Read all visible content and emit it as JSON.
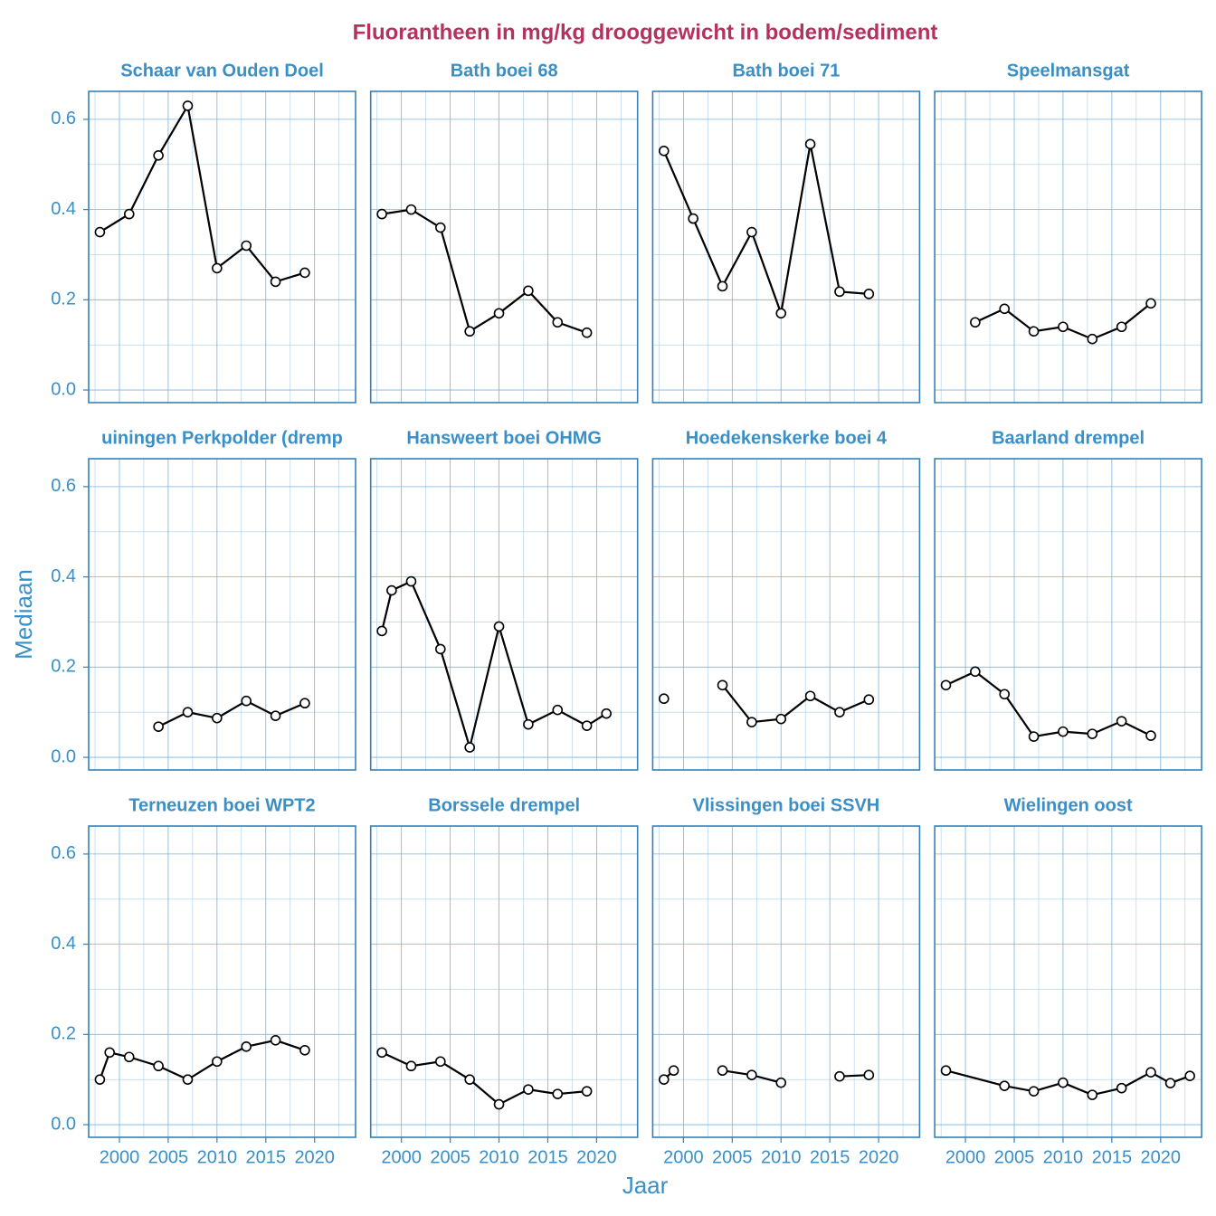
{
  "title": "Fluorantheen in mg/kg drooggewicht in bodem/sediment",
  "xlabel": "Jaar",
  "ylabel": "Mediaan",
  "chart_data": [
    {
      "type": "line",
      "title": "Schaar van Ouden Doel",
      "color": "#000000",
      "grid": true,
      "xlim": [
        1996.85,
        2024.2
      ],
      "ylim": [
        -0.028,
        0.662
      ],
      "xticks": [
        2000,
        2005,
        2010,
        2015,
        2020
      ],
      "yticks": [
        {
          "value": 0,
          "label": "0.0"
        },
        0.2,
        0.4,
        0.6
      ],
      "x": [
        1998,
        2001,
        2004,
        2007,
        2010,
        2013,
        2016,
        2019
      ],
      "values": [
        0.35,
        0.39,
        0.52,
        0.63,
        0.27,
        0.32,
        0.24,
        0.26
      ]
    },
    {
      "type": "line",
      "title": "Bath boei 68",
      "color": "#000000",
      "grid": true,
      "xlim": [
        1996.85,
        2024.2
      ],
      "ylim": [
        -0.028,
        0.662
      ],
      "xticks": [
        2000,
        2005,
        2010,
        2015,
        2020
      ],
      "yticks": [
        {
          "value": 0,
          "label": "0.0"
        },
        0.2,
        0.4,
        0.6
      ],
      "x": [
        1998,
        2001,
        2004,
        2007,
        2010,
        2013,
        2016,
        2019
      ],
      "values": [
        0.39,
        0.4,
        0.36,
        0.13,
        0.17,
        0.22,
        0.15,
        0.127
      ]
    },
    {
      "type": "line",
      "title": "Bath boei 71",
      "color": "#000000",
      "grid": true,
      "xlim": [
        1996.85,
        2024.2
      ],
      "ylim": [
        -0.028,
        0.662
      ],
      "xticks": [
        2000,
        2005,
        2010,
        2015,
        2020
      ],
      "yticks": [
        {
          "value": 0,
          "label": "0.0"
        },
        0.2,
        0.4,
        0.6
      ],
      "x": [
        1998,
        2001,
        2004,
        2007,
        2010,
        2013,
        2016,
        2019
      ],
      "values": [
        0.53,
        0.38,
        0.23,
        0.35,
        0.17,
        0.545,
        0.218,
        0.213
      ]
    },
    {
      "type": "line",
      "title": "Speelmansgat",
      "color": "#000000",
      "grid": true,
      "xlim": [
        1996.85,
        2024.2
      ],
      "ylim": [
        -0.028,
        0.662
      ],
      "xticks": [
        2000,
        2005,
        2010,
        2015,
        2020
      ],
      "yticks": [
        {
          "value": 0,
          "label": "0.0"
        },
        0.2,
        0.4,
        0.6
      ],
      "x": [
        2001,
        2004,
        2007,
        2010,
        2013,
        2016,
        2019
      ],
      "values": [
        0.15,
        0.18,
        0.13,
        0.14,
        0.113,
        0.14,
        0.192
      ]
    },
    {
      "type": "line",
      "title": "uiningen Perkpolder (dremp",
      "color": "#000000",
      "grid": true,
      "xlim": [
        1996.85,
        2024.2
      ],
      "ylim": [
        -0.028,
        0.662
      ],
      "xticks": [
        2000,
        2005,
        2010,
        2015,
        2020
      ],
      "yticks": [
        {
          "value": 0,
          "label": "0.0"
        },
        0.2,
        0.4,
        0.6
      ],
      "x": [
        2004,
        2007,
        2010,
        2013,
        2016,
        2019
      ],
      "values": [
        0.068,
        0.1,
        0.087,
        0.125,
        0.092,
        0.12
      ]
    },
    {
      "type": "line",
      "title": "Hansweert boei OHMG",
      "color": "#000000",
      "grid": true,
      "xlim": [
        1996.85,
        2024.2
      ],
      "ylim": [
        -0.028,
        0.662
      ],
      "xticks": [
        2000,
        2005,
        2010,
        2015,
        2020
      ],
      "yticks": [
        {
          "value": 0,
          "label": "0.0"
        },
        0.2,
        0.4,
        0.6
      ],
      "x": [
        1998,
        1999,
        2001,
        2004,
        2007,
        2010,
        2013,
        2016,
        2019,
        2021
      ],
      "values": [
        0.28,
        0.37,
        0.39,
        0.24,
        0.022,
        0.29,
        0.073,
        0.105,
        0.07,
        0.097
      ]
    },
    {
      "type": "line",
      "title": "Hoedekenskerke boei 4",
      "color": "#000000",
      "grid": true,
      "xlim": [
        1996.85,
        2024.2
      ],
      "ylim": [
        -0.028,
        0.662
      ],
      "xticks": [
        2000,
        2005,
        2010,
        2015,
        2020
      ],
      "yticks": [
        {
          "value": 0,
          "label": "0.0"
        },
        0.2,
        0.4,
        0.6
      ],
      "x": [
        1998,
        2001,
        2004,
        2007,
        2010,
        2013,
        2016,
        2019
      ],
      "values": [
        0.13,
        null,
        0.16,
        0.078,
        0.085,
        0.136,
        0.1,
        0.128
      ]
    },
    {
      "type": "line",
      "title": "Baarland drempel",
      "color": "#000000",
      "grid": true,
      "xlim": [
        1996.85,
        2024.2
      ],
      "ylim": [
        -0.028,
        0.662
      ],
      "xticks": [
        2000,
        2005,
        2010,
        2015,
        2020
      ],
      "yticks": [
        {
          "value": 0,
          "label": "0.0"
        },
        0.2,
        0.4,
        0.6
      ],
      "x": [
        1998,
        2001,
        2004,
        2007,
        2010,
        2013,
        2016,
        2019
      ],
      "values": [
        0.16,
        0.19,
        0.14,
        0.046,
        0.057,
        0.052,
        0.08,
        0.048
      ]
    },
    {
      "type": "line",
      "title": "Terneuzen boei WPT2",
      "color": "#000000",
      "grid": true,
      "xlim": [
        1996.85,
        2024.2
      ],
      "ylim": [
        -0.028,
        0.662
      ],
      "xticks": [
        2000,
        2005,
        2010,
        2015,
        2020
      ],
      "yticks": [
        {
          "value": 0,
          "label": "0.0"
        },
        0.2,
        0.4,
        0.6
      ],
      "x": [
        1998,
        1999,
        2001,
        2004,
        2007,
        2010,
        2013,
        2016,
        2019
      ],
      "values": [
        0.1,
        0.16,
        0.15,
        0.13,
        0.1,
        0.14,
        0.173,
        0.187,
        0.165
      ]
    },
    {
      "type": "line",
      "title": "Borssele drempel",
      "color": "#000000",
      "grid": true,
      "xlim": [
        1996.85,
        2024.2
      ],
      "ylim": [
        -0.028,
        0.662
      ],
      "xticks": [
        2000,
        2005,
        2010,
        2015,
        2020
      ],
      "yticks": [
        {
          "value": 0,
          "label": "0.0"
        },
        0.2,
        0.4,
        0.6
      ],
      "x": [
        1998,
        2001,
        2004,
        2007,
        2010,
        2013,
        2016,
        2019
      ],
      "values": [
        0.16,
        0.13,
        0.14,
        0.1,
        0.045,
        0.078,
        0.068,
        0.074
      ]
    },
    {
      "type": "line",
      "title": "Vlissingen boei SSVH",
      "color": "#000000",
      "grid": true,
      "xlim": [
        1996.85,
        2024.2
      ],
      "ylim": [
        -0.028,
        0.662
      ],
      "xticks": [
        2000,
        2005,
        2010,
        2015,
        2020
      ],
      "yticks": [
        {
          "value": 0,
          "label": "0.0"
        },
        0.2,
        0.4,
        0.6
      ],
      "x": [
        1998,
        1999,
        2001,
        2004,
        2007,
        2010,
        2013,
        2016,
        2019
      ],
      "values": [
        0.1,
        0.12,
        null,
        0.12,
        0.11,
        0.093,
        null,
        0.107,
        0.11
      ]
    },
    {
      "type": "line",
      "title": "Wielingen oost",
      "color": "#000000",
      "grid": true,
      "xlim": [
        1996.85,
        2024.2
      ],
      "ylim": [
        -0.028,
        0.662
      ],
      "xticks": [
        2000,
        2005,
        2010,
        2015,
        2020
      ],
      "yticks": [
        {
          "value": 0,
          "label": "0.0"
        },
        0.2,
        0.4,
        0.6
      ],
      "x": [
        1998,
        2004,
        2007,
        2010,
        2013,
        2016,
        2019,
        2021,
        2023
      ],
      "values": [
        0.12,
        0.086,
        0.074,
        0.093,
        0.066,
        0.081,
        0.116,
        0.092,
        0.108
      ]
    }
  ]
}
